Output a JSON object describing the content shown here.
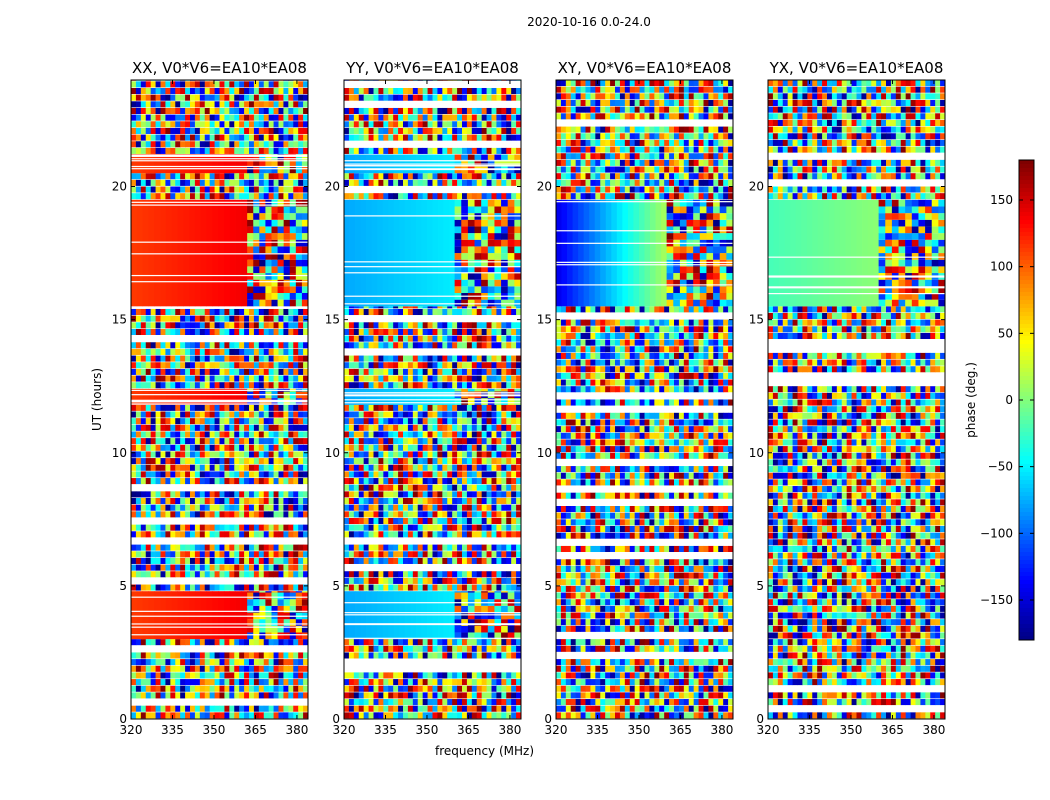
{
  "figure_title": "2020-10-16 0.0-24.0",
  "colormap": [
    "#00007f",
    "#0000ff",
    "#007fff",
    "#00ffff",
    "#7fff7f",
    "#ffff00",
    "#ff7f00",
    "#ff0000",
    "#7f0000"
  ],
  "chart_data": [
    {
      "type": "heatmap",
      "title": "XX, V0*V6=EA10*EA08",
      "xlabel": "",
      "ylabel": "UT (hours)",
      "xlim": [
        320,
        384
      ],
      "ylim": [
        0,
        24
      ],
      "xticks": [
        320,
        335,
        350,
        365,
        380
      ],
      "yticks": [
        0,
        5,
        10,
        15,
        20
      ],
      "coherent_phase_deg": 115,
      "coherent_band_MHz": [
        320,
        362
      ],
      "coherent_hours": [
        [
          15.5,
          19.5
        ],
        [
          20.5,
          21.2
        ],
        [
          11.8,
          12.4
        ],
        [
          3.0,
          4.8
        ]
      ],
      "noise_hours": [
        [
          0,
          3.0
        ],
        [
          4.8,
          11.8
        ],
        [
          12.4,
          15.5
        ],
        [
          19.5,
          20.5
        ],
        [
          21.2,
          24
        ]
      ]
    },
    {
      "type": "heatmap",
      "title": "YY, V0*V6=EA10*EA08",
      "xlabel": "frequency (MHz)",
      "ylabel": "",
      "xlim": [
        320,
        384
      ],
      "ylim": [
        0,
        24
      ],
      "xticks": [
        320,
        335,
        350,
        365,
        380
      ],
      "yticks": [
        0,
        5,
        10,
        15,
        20
      ],
      "coherent_phase_deg": -75,
      "coherent_band_MHz": [
        320,
        360
      ],
      "coherent_hours": [
        [
          15.5,
          19.5
        ],
        [
          20.5,
          21.2
        ],
        [
          11.8,
          12.4
        ],
        [
          3.0,
          4.8
        ]
      ],
      "noise_hours": [
        [
          0,
          3.0
        ],
        [
          4.8,
          11.8
        ],
        [
          12.4,
          15.5
        ],
        [
          19.5,
          20.5
        ],
        [
          21.2,
          24
        ]
      ]
    },
    {
      "type": "heatmap",
      "title": "XY, V0*V6=EA10*EA08",
      "xlabel": "",
      "ylabel": "",
      "xlim": [
        320,
        384
      ],
      "ylim": [
        0,
        24
      ],
      "xticks": [
        320,
        335,
        350,
        365,
        380
      ],
      "yticks": [
        0,
        5,
        10,
        15,
        20
      ],
      "coherent_phase_deg": -140,
      "coherent_band_MHz": [
        320,
        360
      ],
      "coherent_hours": [
        [
          15.5,
          19.5
        ]
      ],
      "noise_hours": [
        [
          0,
          15.5
        ],
        [
          19.5,
          24
        ]
      ]
    },
    {
      "type": "heatmap",
      "title": "YX, V0*V6=EA10*EA08",
      "xlabel": "",
      "ylabel": "",
      "xlim": [
        320,
        384
      ],
      "ylim": [
        0,
        24
      ],
      "xticks": [
        320,
        335,
        350,
        365,
        380
      ],
      "yticks": [
        0,
        5,
        10,
        15,
        20
      ],
      "coherent_phase_deg": -20,
      "coherent_band_MHz": [
        320,
        360
      ],
      "coherent_hours": [
        [
          15.5,
          19.5
        ]
      ],
      "noise_hours": [
        [
          0,
          15.5
        ],
        [
          19.5,
          24
        ]
      ]
    }
  ],
  "colorbar": {
    "label": "phase (deg.)",
    "range": [
      -180,
      180
    ],
    "ticks": [
      150,
      100,
      50,
      0,
      -50,
      -100,
      -150
    ],
    "tick_labels": [
      "150",
      "100",
      "50",
      "0",
      "−50",
      "−100",
      "−150"
    ]
  }
}
